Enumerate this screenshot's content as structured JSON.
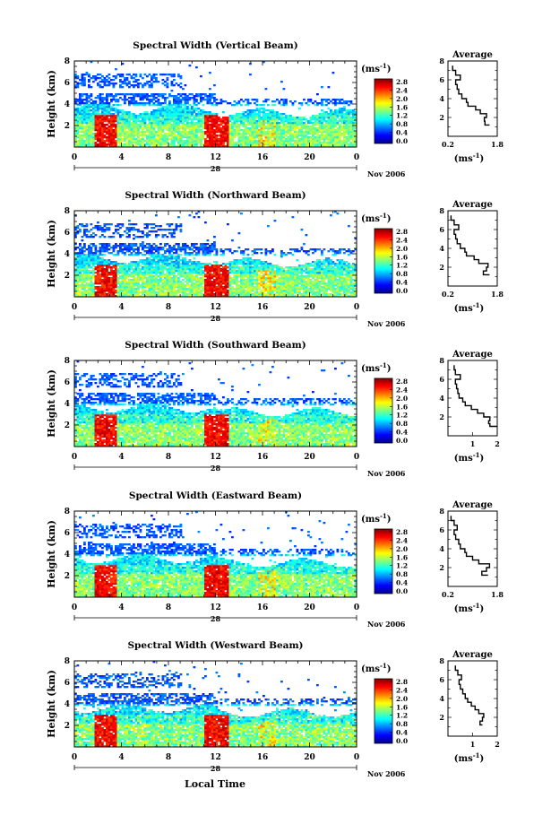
{
  "page": {
    "xlabel": "Local Time",
    "date_label": "Nov 2006",
    "date_day": "28",
    "ylabel": "Height (km)",
    "unit_label": "(ms",
    "unit_exp": "-1",
    "avg_title": "Average",
    "avg_xlabel": "(ms",
    "avg_xlabel_exp": "-1"
  },
  "chart_data": [
    {
      "type": "heatmap",
      "title": "Spectral Width (Vertical Beam)",
      "xlim": [
        0,
        24
      ],
      "ylim": [
        0,
        8
      ],
      "x_ticks": [
        "0",
        "4",
        "8",
        "12",
        "16",
        "20",
        "0"
      ],
      "y_ticks": [
        "2",
        "4",
        "6",
        "8"
      ],
      "colorbar": {
        "label": "(ms-1)",
        "range": [
          0,
          2.8
        ],
        "ticks": [
          "2.8",
          "2.4",
          "2.0",
          "1.6",
          "1.2",
          "0.8",
          "0.4",
          "0.0"
        ]
      },
      "average_profile": {
        "title": "Average",
        "xlabel": "(ms-1)",
        "xlim": [
          0.2,
          1.8
        ],
        "x_ticks": [
          "0.2",
          "1.8"
        ],
        "y_ticks": [
          "2",
          "4",
          "6",
          "8"
        ],
        "height_km": [
          1.2,
          1.6,
          2.0,
          2.4,
          2.8,
          3.2,
          3.6,
          4.0,
          4.5,
          5.0,
          5.5,
          6.0,
          6.5,
          7.0,
          7.5
        ],
        "width_ms": [
          1.55,
          1.4,
          1.38,
          1.45,
          1.25,
          1.1,
          0.85,
          0.8,
          0.65,
          0.55,
          0.5,
          0.45,
          0.6,
          0.45,
          0.35
        ]
      }
    },
    {
      "type": "heatmap",
      "title": "Spectral Width (Northward Beam)",
      "xlim": [
        0,
        24
      ],
      "ylim": [
        0,
        8
      ],
      "x_ticks": [
        "0",
        "4",
        "8",
        "12",
        "16",
        "20",
        "0"
      ],
      "y_ticks": [
        "2",
        "4",
        "6",
        "8"
      ],
      "colorbar": {
        "label": "(ms-1)",
        "range": [
          0,
          2.8
        ],
        "ticks": [
          "2.8",
          "2.4",
          "2.0",
          "1.6",
          "1.2",
          "0.8",
          "0.4",
          "0.0"
        ]
      },
      "average_profile": {
        "title": "Average",
        "xlabel": "(ms-1)",
        "xlim": [
          0.2,
          1.8
        ],
        "x_ticks": [
          "0.2",
          "1.8"
        ],
        "y_ticks": [
          "2",
          "4",
          "6",
          "8"
        ],
        "height_km": [
          1.2,
          1.6,
          2.0,
          2.4,
          2.8,
          3.2,
          3.6,
          4.0,
          4.5,
          5.0,
          5.5,
          6.0,
          6.5,
          7.0,
          7.5
        ],
        "width_ms": [
          1.55,
          1.35,
          1.45,
          1.5,
          1.2,
          1.05,
          0.8,
          0.75,
          0.6,
          0.5,
          0.45,
          0.4,
          0.55,
          0.4,
          0.3
        ]
      }
    },
    {
      "type": "heatmap",
      "title": "Spectral Width (Southward Beam)",
      "xlim": [
        0,
        24
      ],
      "ylim": [
        0,
        8
      ],
      "x_ticks": [
        "0",
        "4",
        "8",
        "12",
        "16",
        "20",
        "0"
      ],
      "y_ticks": [
        "2",
        "4",
        "6",
        "8"
      ],
      "colorbar": {
        "label": "(ms-1)",
        "range": [
          0,
          2.8
        ],
        "ticks": [
          "2.8",
          "2.4",
          "2.0",
          "1.6",
          "1.2",
          "0.8",
          "0.4",
          "0.0"
        ]
      },
      "average_profile": {
        "title": "Average",
        "xlabel": "(ms-1)",
        "xlim": [
          0,
          2
        ],
        "x_ticks": [
          "1",
          "2"
        ],
        "y_ticks": [
          "2",
          "4",
          "6",
          "8"
        ],
        "height_km": [
          1.0,
          1.3,
          1.6,
          2.0,
          2.4,
          2.8,
          3.2,
          3.6,
          4.0,
          4.5,
          5.0,
          5.5,
          6.0,
          6.5,
          7.0,
          7.5
        ],
        "width_ms": [
          2.0,
          1.7,
          1.65,
          1.7,
          1.45,
          1.2,
          0.95,
          0.7,
          0.6,
          0.45,
          0.4,
          0.35,
          0.3,
          0.5,
          0.3,
          0.25
        ]
      }
    },
    {
      "type": "heatmap",
      "title": "Spectral Width (Eastward Beam)",
      "xlim": [
        0,
        24
      ],
      "ylim": [
        0,
        8
      ],
      "x_ticks": [
        "0",
        "4",
        "8",
        "12",
        "16",
        "20",
        "0"
      ],
      "y_ticks": [
        "2",
        "4",
        "6",
        "8"
      ],
      "colorbar": {
        "label": "(ms-1)",
        "range": [
          0,
          2.8
        ],
        "ticks": [
          "2.8",
          "2.4",
          "2.0",
          "1.6",
          "1.2",
          "0.8",
          "0.4",
          "0.0"
        ]
      },
      "average_profile": {
        "title": "Average",
        "xlabel": "(ms-1)",
        "xlim": [
          0.2,
          1.8
        ],
        "x_ticks": [
          "0.2",
          "1.8"
        ],
        "y_ticks": [
          "2",
          "4",
          "6",
          "8"
        ],
        "height_km": [
          1.2,
          1.6,
          2.0,
          2.4,
          2.8,
          3.2,
          3.6,
          4.0,
          4.5,
          5.0,
          5.5,
          6.0,
          6.5,
          7.0,
          7.5
        ],
        "width_ms": [
          1.5,
          1.3,
          1.45,
          1.55,
          1.2,
          1.0,
          0.8,
          0.75,
          0.6,
          0.55,
          0.45,
          0.4,
          0.5,
          0.4,
          0.3
        ]
      }
    },
    {
      "type": "heatmap",
      "title": "Spectral Width (Westward Beam)",
      "xlim": [
        0,
        24
      ],
      "ylim": [
        0,
        8
      ],
      "x_ticks": [
        "0",
        "4",
        "8",
        "12",
        "16",
        "20",
        "0"
      ],
      "y_ticks": [
        "2",
        "4",
        "6",
        "8"
      ],
      "colorbar": {
        "label": "(ms-1)",
        "range": [
          0,
          2.8
        ],
        "ticks": [
          "2.8",
          "2.4",
          "2.0",
          "1.6",
          "1.2",
          "0.8",
          "0.4",
          "0.0"
        ]
      },
      "average_profile": {
        "title": "Average",
        "xlabel": "(ms-1)",
        "xlim": [
          0,
          2
        ],
        "x_ticks": [
          "1",
          "2"
        ],
        "y_ticks": [
          "2",
          "4",
          "6",
          "8"
        ],
        "height_km": [
          1.2,
          1.6,
          2.0,
          2.4,
          2.8,
          3.2,
          3.6,
          4.0,
          4.5,
          5.0,
          5.5,
          6.0,
          6.5,
          7.0,
          7.5
        ],
        "width_ms": [
          1.4,
          1.3,
          1.4,
          1.45,
          1.25,
          1.1,
          0.95,
          0.8,
          0.7,
          0.6,
          0.5,
          0.45,
          0.55,
          0.4,
          0.3
        ]
      }
    }
  ]
}
